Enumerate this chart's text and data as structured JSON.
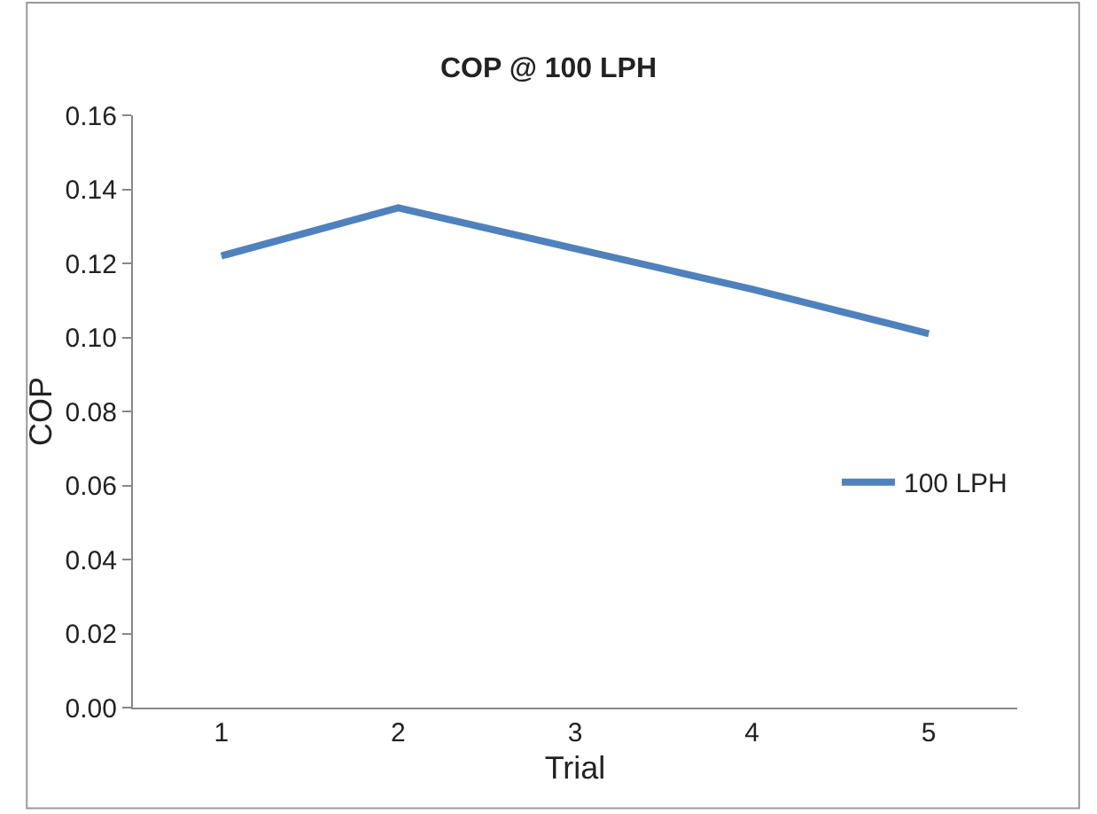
{
  "chart_data": {
    "type": "line",
    "title": "COP @ 100 LPH",
    "xlabel": "Trial",
    "ylabel": "COP",
    "categories": [
      "1",
      "2",
      "3",
      "4",
      "5"
    ],
    "series": [
      {
        "name": "100 LPH",
        "color": "#4f81bd",
        "values": [
          0.122,
          0.135,
          0.124,
          0.113,
          0.101
        ]
      }
    ],
    "ylim": [
      0,
      0.16
    ],
    "yticks": [
      {
        "value": 0,
        "label": "0.00"
      },
      {
        "value": 0.02,
        "label": "0.02"
      },
      {
        "value": 0.04,
        "label": "0.04"
      },
      {
        "value": 0.06,
        "label": "0.06"
      },
      {
        "value": 0.08,
        "label": "0.08"
      },
      {
        "value": 0.1,
        "label": "0.10"
      },
      {
        "value": 0.12,
        "label": "0.12"
      },
      {
        "value": 0.14,
        "label": "0.14"
      },
      {
        "value": 0.16,
        "label": "0.16"
      }
    ],
    "legend": "right",
    "marker": "none",
    "line_style": "solid"
  }
}
